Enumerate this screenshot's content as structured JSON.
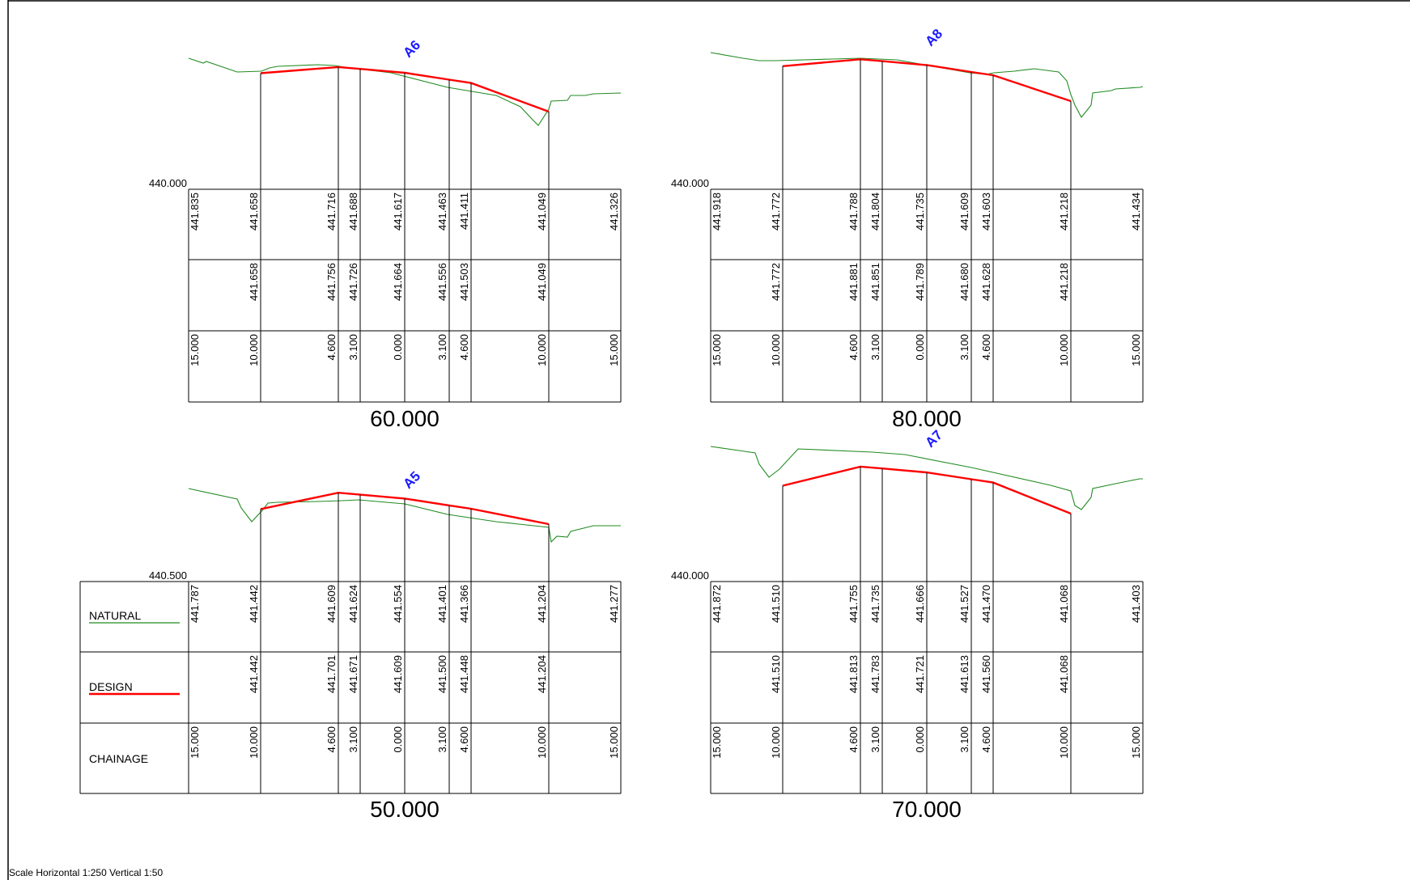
{
  "page": {
    "scale_note": "Scale  Horizontal 1:250  Vertical 1:50"
  },
  "legend": {
    "natural": "NATURAL",
    "design": "DESIGN",
    "chainage": "CHAINAGE",
    "natural_color": "#228B22",
    "design_color": "#FF0000"
  },
  "offsets": [
    "15.000",
    "10.000",
    "4.600",
    "3.100",
    "0.000",
    "3.100",
    "4.600",
    "10.000",
    "15.000"
  ],
  "sections": [
    {
      "station": "60.000",
      "label": "A6",
      "datum": "440.000",
      "natural": [
        "441.835",
        "441.658",
        "441.716",
        "441.688",
        "441.617",
        "441.463",
        "441.411",
        "441.049",
        "441.326"
      ],
      "design": [
        "",
        "441.658",
        "441.756",
        "441.726",
        "441.664",
        "441.556",
        "441.503",
        "441.049",
        ""
      ]
    },
    {
      "station": "80.000",
      "label": "A8",
      "datum": "440.000",
      "natural": [
        "441.918",
        "441.772",
        "441.788",
        "441.804",
        "441.735",
        "441.609",
        "441.603",
        "441.218",
        "441.434"
      ],
      "design": [
        "",
        "441.772",
        "441.881",
        "441.851",
        "441.789",
        "441.680",
        "441.628",
        "441.218",
        ""
      ]
    },
    {
      "station": "50.000",
      "label": "A5",
      "datum": "440.500",
      "natural": [
        "441.787",
        "441.442",
        "441.609",
        "441.624",
        "441.554",
        "441.401",
        "441.366",
        "441.204",
        "441.277"
      ],
      "design": [
        "",
        "441.442",
        "441.701",
        "441.671",
        "441.609",
        "441.500",
        "441.448",
        "441.204",
        ""
      ]
    },
    {
      "station": "70.000",
      "label": "A7",
      "datum": "440.000",
      "natural": [
        "441.872",
        "441.510",
        "441.755",
        "441.735",
        "441.666",
        "441.527",
        "441.470",
        "441.068",
        "441.403"
      ],
      "design": [
        "",
        "441.510",
        "441.813",
        "441.783",
        "441.721",
        "441.613",
        "441.560",
        "441.068",
        ""
      ]
    }
  ]
}
